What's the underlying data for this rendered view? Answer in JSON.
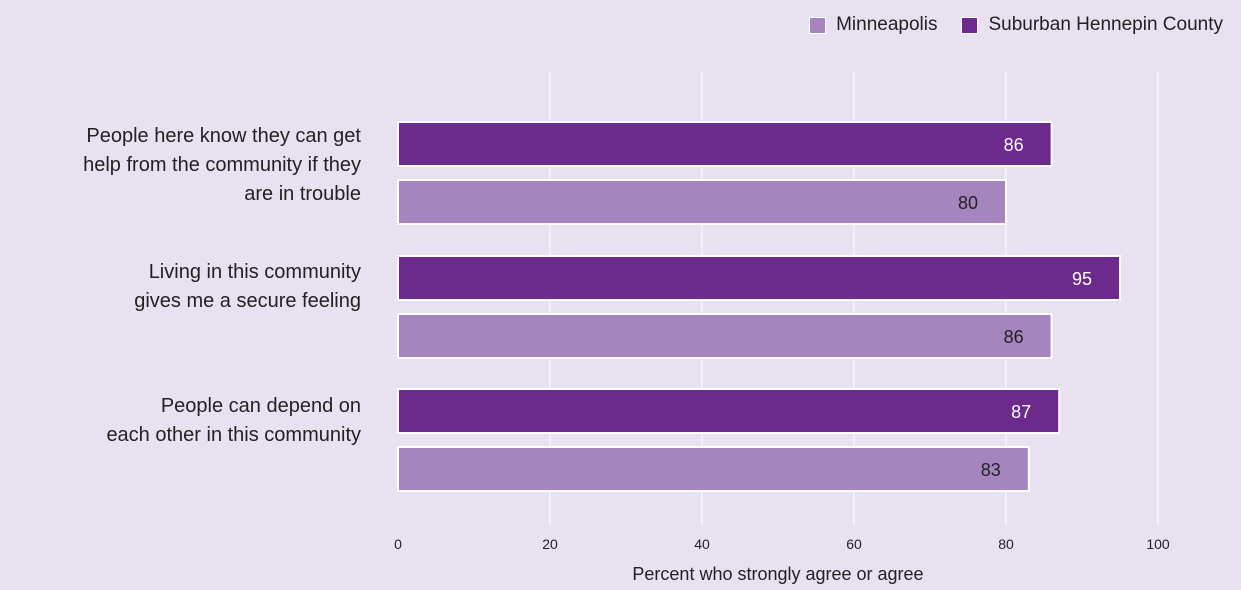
{
  "chart_data": {
    "type": "bar",
    "orientation": "horizontal",
    "categories": [
      "People here know they can get help from the community if they are in trouble",
      "Living in this community gives me a secure feeling",
      "People can depend on each other in this community"
    ],
    "category_lines": [
      [
        "People here know they can get",
        "help from the community if they",
        "are in trouble"
      ],
      [
        "Living in this community",
        "gives me a secure feeling"
      ],
      [
        "People can depend on",
        "each other in this community"
      ]
    ],
    "series": [
      {
        "name": "Suburban Hennepin County",
        "values": [
          86,
          95,
          87
        ],
        "color": "#6b2a8c",
        "label_color": "#ffffff"
      },
      {
        "name": "Minneapolis",
        "values": [
          80,
          86,
          83
        ],
        "color": "#a685be",
        "label_color": "#222222"
      }
    ],
    "legend": {
      "placement": "top-right",
      "entries": [
        {
          "name": "Minneapolis",
          "color": "#a685be"
        },
        {
          "name": "Suburban Hennepin County",
          "color": "#6b2a8c"
        }
      ]
    },
    "xlabel": "Percent who strongly agree or agree",
    "ylabel": "",
    "xlim": [
      0,
      100
    ],
    "xticks": [
      0,
      20,
      40,
      60,
      80,
      100
    ],
    "grid": true,
    "data_labels": true
  },
  "colors": {
    "background": "#e8e1ef",
    "gridline": "#ffffff",
    "bar_border": "#ffffff"
  }
}
